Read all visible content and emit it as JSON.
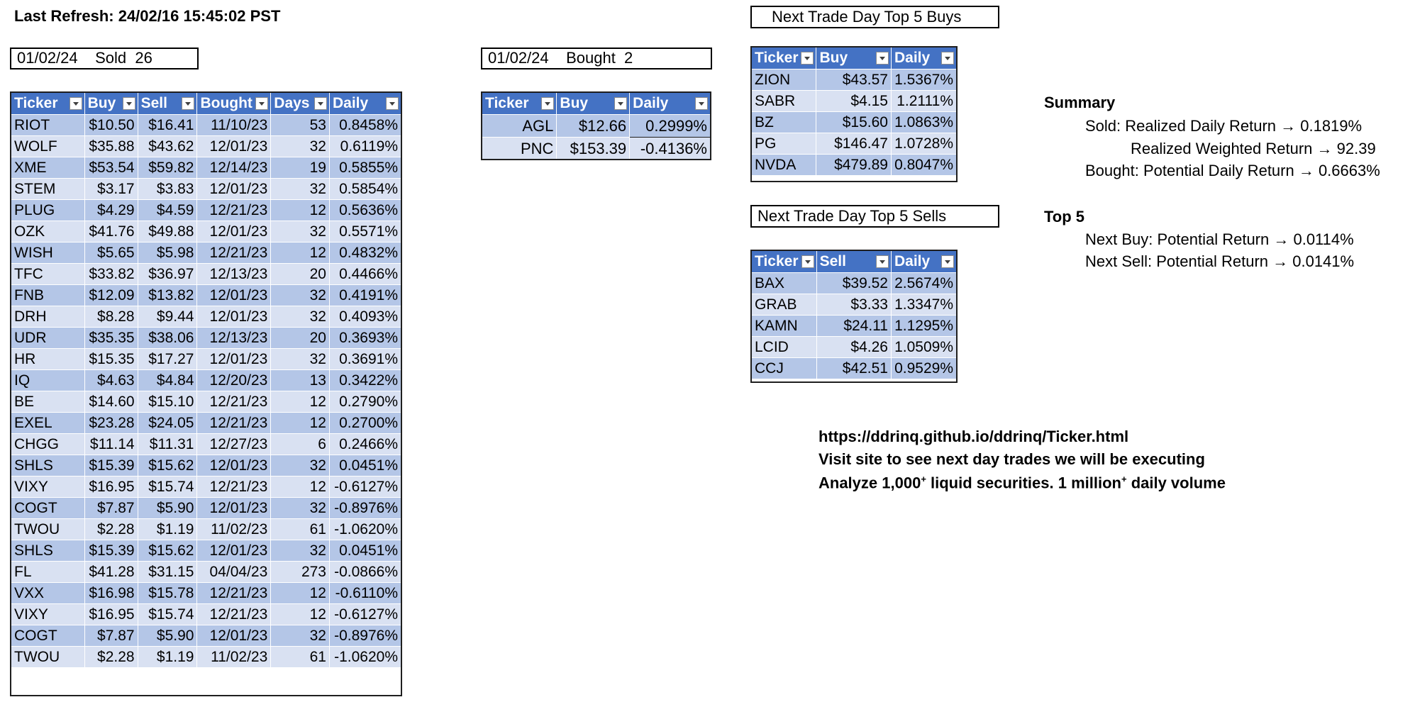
{
  "last_refresh": "Last Refresh: 24/02/16 15:45:02 PST",
  "sold_box": "01/02/24    Sold  26",
  "bought_box": "01/02/24    Bought  2",
  "sold_table": {
    "headers": [
      "Ticker",
      "Buy",
      "Sell",
      "Bought",
      "Days",
      "Daily"
    ],
    "rows": [
      [
        "RIOT",
        "$10.50",
        "$16.41",
        "11/10/23",
        "53",
        "0.8458%"
      ],
      [
        "WOLF",
        "$35.88",
        "$43.62",
        "12/01/23",
        "32",
        "0.6119%"
      ],
      [
        "XME",
        "$53.54",
        "$59.82",
        "12/14/23",
        "19",
        "0.5855%"
      ],
      [
        "STEM",
        "$3.17",
        "$3.83",
        "12/01/23",
        "32",
        "0.5854%"
      ],
      [
        "PLUG",
        "$4.29",
        "$4.59",
        "12/21/23",
        "12",
        "0.5636%"
      ],
      [
        "OZK",
        "$41.76",
        "$49.88",
        "12/01/23",
        "32",
        "0.5571%"
      ],
      [
        "WISH",
        "$5.65",
        "$5.98",
        "12/21/23",
        "12",
        "0.4832%"
      ],
      [
        "TFC",
        "$33.82",
        "$36.97",
        "12/13/23",
        "20",
        "0.4466%"
      ],
      [
        "FNB",
        "$12.09",
        "$13.82",
        "12/01/23",
        "32",
        "0.4191%"
      ],
      [
        "DRH",
        "$8.28",
        "$9.44",
        "12/01/23",
        "32",
        "0.4093%"
      ],
      [
        "UDR",
        "$35.35",
        "$38.06",
        "12/13/23",
        "20",
        "0.3693%"
      ],
      [
        "HR",
        "$15.35",
        "$17.27",
        "12/01/23",
        "32",
        "0.3691%"
      ],
      [
        "IQ",
        "$4.63",
        "$4.84",
        "12/20/23",
        "13",
        "0.3422%"
      ],
      [
        "BE",
        "$14.60",
        "$15.10",
        "12/21/23",
        "12",
        "0.2790%"
      ],
      [
        "EXEL",
        "$23.28",
        "$24.05",
        "12/21/23",
        "12",
        "0.2700%"
      ],
      [
        "CHGG",
        "$11.14",
        "$11.31",
        "12/27/23",
        "6",
        "0.2466%"
      ],
      [
        "SHLS",
        "$15.39",
        "$15.62",
        "12/01/23",
        "32",
        "0.0451%"
      ],
      [
        "VIXY",
        "$16.95",
        "$15.74",
        "12/21/23",
        "12",
        "-0.6127%"
      ],
      [
        "COGT",
        "$7.87",
        "$5.90",
        "12/01/23",
        "32",
        "-0.8976%"
      ],
      [
        "TWOU",
        "$2.28",
        "$1.19",
        "11/02/23",
        "61",
        "-1.0620%"
      ],
      [
        "SHLS",
        "$15.39",
        "$15.62",
        "12/01/23",
        "32",
        "0.0451%"
      ],
      [
        "FL",
        "$41.28",
        "$31.15",
        "04/04/23",
        "273",
        "-0.0866%"
      ],
      [
        "VXX",
        "$16.98",
        "$15.78",
        "12/21/23",
        "12",
        "-0.6110%"
      ],
      [
        "VIXY",
        "$16.95",
        "$15.74",
        "12/21/23",
        "12",
        "-0.6127%"
      ],
      [
        "COGT",
        "$7.87",
        "$5.90",
        "12/01/23",
        "32",
        "-0.8976%"
      ],
      [
        "TWOU",
        "$2.28",
        "$1.19",
        "11/02/23",
        "61",
        "-1.0620%"
      ]
    ]
  },
  "bought_table": {
    "headers": [
      "Ticker",
      "Buy",
      "Daily"
    ],
    "rows": [
      [
        "AGL",
        "$12.66",
        "0.2999%"
      ],
      [
        "PNC",
        "$153.39",
        "-0.4136%"
      ]
    ]
  },
  "buys_box": "Next Trade Day Top 5 Buys",
  "buys_table": {
    "headers": [
      "Ticker",
      "Buy",
      "Daily"
    ],
    "rows": [
      [
        "ZION",
        "$43.57",
        "1.5367%"
      ],
      [
        "SABR",
        "$4.15",
        "1.2111%"
      ],
      [
        "BZ",
        "$15.60",
        "1.0863%"
      ],
      [
        "PG",
        "$146.47",
        "1.0728%"
      ],
      [
        "NVDA",
        "$479.89",
        "0.8047%"
      ]
    ]
  },
  "sells_box": "Next Trade Day Top 5 Sells",
  "sells_table": {
    "headers": [
      "Ticker",
      "Sell",
      "Daily"
    ],
    "rows": [
      [
        "BAX",
        "$39.52",
        "2.5674%"
      ],
      [
        "GRAB",
        "$3.33",
        "1.3347%"
      ],
      [
        "KAMN",
        "$24.11",
        "1.1295%"
      ],
      [
        "LCID",
        "$4.26",
        "1.0509%"
      ],
      [
        "CCJ",
        "$42.51",
        "0.9529%"
      ]
    ]
  },
  "summary": {
    "heading": "Summary",
    "sold_line": "Sold: Realized Daily Return → 0.1819%",
    "weighted_line": "Realized Weighted Return → 92.39",
    "bought_line": "Bought: Potential Daily Return → 0.6663%"
  },
  "top5": {
    "heading": "Top 5",
    "buy_line": "Next Buy: Potential Return → 0.0114%",
    "sell_line": "Next Sell: Potential Return → 0.0141%"
  },
  "footer": {
    "url": "https://ddrinq.github.io/ddrinq/Ticker.html",
    "visit": "Visit site to see next day trades we will be executing",
    "analyze_a": "Analyze 1,000",
    "sup_a": "+",
    "analyze_b": " liquid securities.  1 million",
    "sup_b": "+",
    "analyze_c": " daily volume"
  }
}
